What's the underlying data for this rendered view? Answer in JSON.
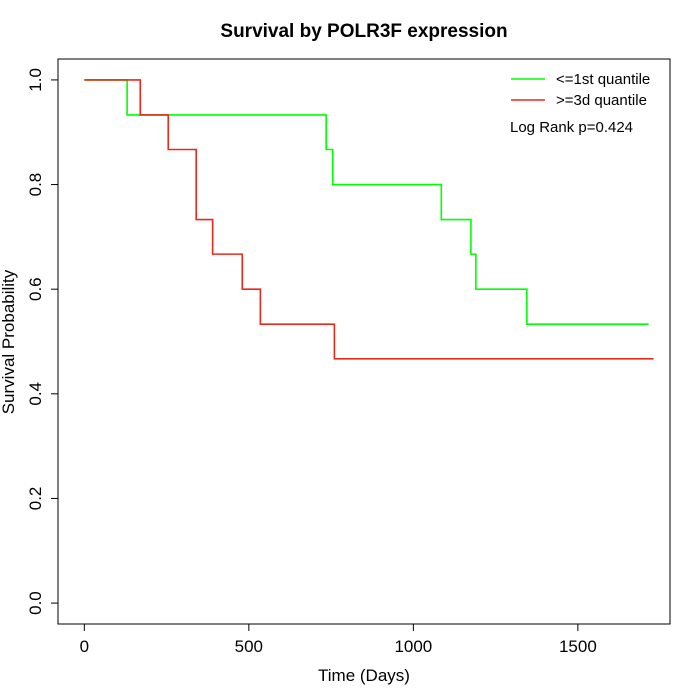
{
  "chart_data": {
    "type": "line",
    "step": true,
    "title": "Survival by POLR3F expression",
    "xlabel": "Time (Days)",
    "ylabel": "Survival Probability",
    "xlim": [
      -80,
      1780
    ],
    "ylim": [
      -0.04,
      1.04
    ],
    "x_ticks": [
      0,
      500,
      1000,
      1500
    ],
    "y_ticks": [
      0.0,
      0.2,
      0.4,
      0.6,
      0.8,
      1.0
    ],
    "x_tick_labels": [
      "0",
      "500",
      "1000",
      "1500"
    ],
    "y_tick_labels": [
      "0.0",
      "0.2",
      "0.4",
      "0.6",
      "0.8",
      "1.0"
    ],
    "grid": false,
    "legend_position": "top-right",
    "annotation": "Log Rank p=0.424",
    "series": [
      {
        "name": "<=1st quantile",
        "color": "#00ff00",
        "x": [
          0,
          130,
          735,
          755,
          1085,
          1175,
          1190,
          1345,
          1715
        ],
        "y": [
          1.0,
          0.933,
          0.867,
          0.8,
          0.733,
          0.667,
          0.6,
          0.533,
          0.533
        ]
      },
      {
        "name": ">=3d quantile",
        "color": "#e8291c",
        "x": [
          0,
          170,
          255,
          340,
          390,
          480,
          535,
          760,
          1730
        ],
        "y": [
          1.0,
          0.933,
          0.867,
          0.733,
          0.667,
          0.6,
          0.533,
          0.467,
          0.467
        ]
      }
    ]
  }
}
